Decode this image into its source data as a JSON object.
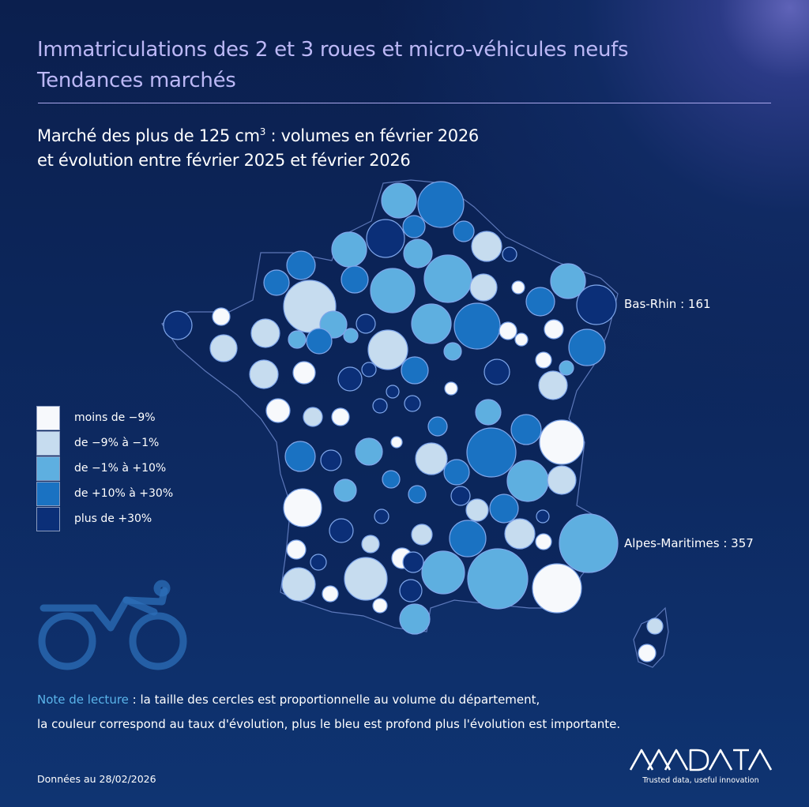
{
  "header": {
    "title_line1": "Immatriculations des 2 et 3 roues et micro-véhicules neufs",
    "title_line2": "Tendances marchés",
    "subtitle_line1_pre": "Marché des plus de 125 cm",
    "subtitle_sup": "3",
    "subtitle_line1_post": " : volumes en février 2026",
    "subtitle_line2": "et évolution entre février 2025 et février 2026"
  },
  "legend": [
    {
      "label": "moins de −9%",
      "color": "#f7f9fc"
    },
    {
      "label": "de −9% à −1%",
      "color": "#c6dcef"
    },
    {
      "label": "de −1% à +10%",
      "color": "#5eafe0"
    },
    {
      "label": "de +10% à +30%",
      "color": "#1a72c2"
    },
    {
      "label": "plus de +30%",
      "color": "#0b2f78"
    }
  ],
  "callouts": {
    "bas_rhin": "Bas-Rhin : 161",
    "alpes_maritimes": "Alpes-Maritimes : 357"
  },
  "note": {
    "lead": "Note de lecture",
    "line1_rest": " : la taille des cercles est proportionnelle au volume du département,",
    "line2": "la couleur correspond au taux d'évolution, plus le bleu est profond plus l'évolution est importante."
  },
  "footer": {
    "date": "Données au 28/02/2026",
    "logo_text": "AAADATA",
    "logo_tagline": "Trusted data, useful innovation"
  },
  "icons": {
    "vehicle": "motorcycle-icon"
  }
}
